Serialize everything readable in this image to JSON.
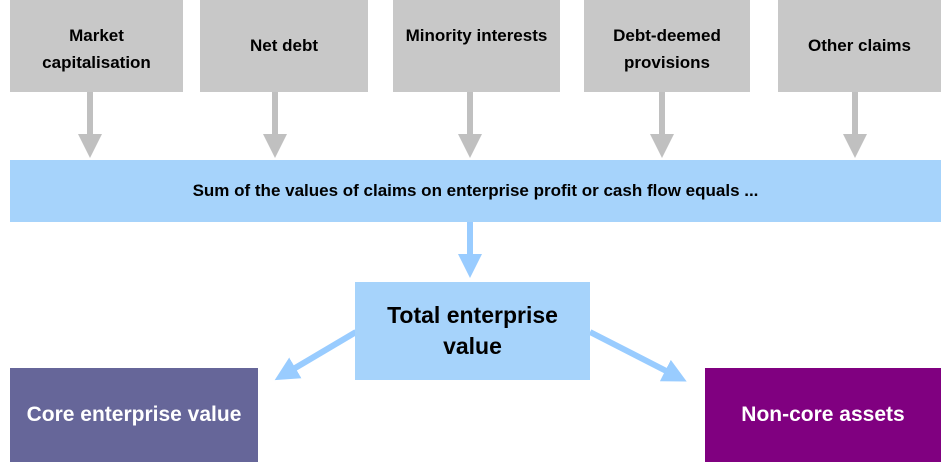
{
  "claims": [
    {
      "label": "Market capitalisation"
    },
    {
      "label": "Net debt"
    },
    {
      "label": "Minority interests"
    },
    {
      "label": "Debt-deemed provisions"
    },
    {
      "label": "Other claims"
    }
  ],
  "sum_bar": {
    "label": "Sum of the values of claims on enterprise profit or cash flow equals ..."
  },
  "total": {
    "label": "Total enterprise value"
  },
  "outputs": [
    {
      "label": "Core enterprise value"
    },
    {
      "label": "Non-core assets"
    }
  ]
}
